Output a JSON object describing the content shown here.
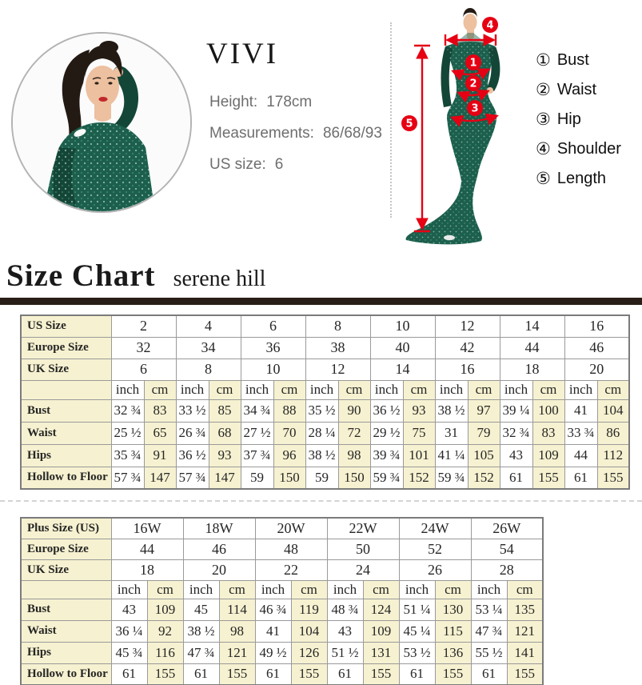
{
  "colors": {
    "accent-red": "#e60013",
    "dress-green": "#1b5f4c",
    "dress-green-dark": "#134637",
    "cream": "#f6f1d0",
    "bar-dark": "#2a1e18",
    "text-grey": "#6e6e6e",
    "skin": "#edc0a0",
    "hair": "#241a14"
  },
  "header": {
    "brand": "VIVI",
    "info": [
      {
        "label": "Height:",
        "value": "178cm"
      },
      {
        "label": "Measurements:",
        "value": "86/68/93"
      },
      {
        "label": "US size:",
        "value": "6"
      }
    ]
  },
  "diagram": {
    "badges": [
      "1",
      "2",
      "3",
      "4",
      "5"
    ],
    "legend": [
      {
        "num": "①",
        "label": "Bust"
      },
      {
        "num": "②",
        "label": "Waist"
      },
      {
        "num": "③",
        "label": "Hip"
      },
      {
        "num": "④",
        "label": "Shoulder"
      },
      {
        "num": "⑤",
        "label": "Length"
      }
    ]
  },
  "section": {
    "title": "Size Chart",
    "subtitle": "serene hill"
  },
  "size_table": {
    "units": [
      "inch",
      "cm"
    ],
    "size_rows": [
      {
        "label": "US Size",
        "values": [
          "2",
          "4",
          "6",
          "8",
          "10",
          "12",
          "14",
          "16"
        ]
      },
      {
        "label": "Europe Size",
        "values": [
          "32",
          "34",
          "36",
          "38",
          "40",
          "42",
          "44",
          "46"
        ]
      },
      {
        "label": "UK Size",
        "values": [
          "6",
          "8",
          "10",
          "12",
          "14",
          "16",
          "18",
          "20"
        ]
      }
    ],
    "measure_rows": [
      {
        "label": "Bust",
        "inch": [
          "32 ¾",
          "33 ½",
          "34 ¾",
          "35 ½",
          "36 ½",
          "38 ½",
          "39 ¼",
          "41"
        ],
        "cm": [
          "83",
          "85",
          "88",
          "90",
          "93",
          "97",
          "100",
          "104"
        ]
      },
      {
        "label": "Waist",
        "inch": [
          "25 ½",
          "26 ¾",
          "27 ½",
          "28 ¼",
          "29 ½",
          "31",
          "32 ¾",
          "33 ¾"
        ],
        "cm": [
          "65",
          "68",
          "70",
          "72",
          "75",
          "79",
          "83",
          "86"
        ]
      },
      {
        "label": "Hips",
        "inch": [
          "35 ¾",
          "36 ½",
          "37 ¾",
          "38 ½",
          "39 ¾",
          "41 ¼",
          "43",
          "44"
        ],
        "cm": [
          "91",
          "93",
          "96",
          "98",
          "101",
          "105",
          "109",
          "112"
        ]
      },
      {
        "label": "Hollow to Floor",
        "inch": [
          "57 ¾",
          "57 ¾",
          "59",
          "59",
          "59 ¾",
          "59 ¾",
          "61",
          "61"
        ],
        "cm": [
          "147",
          "147",
          "150",
          "150",
          "152",
          "152",
          "155",
          "155"
        ]
      }
    ]
  },
  "plus_table": {
    "units": [
      "inch",
      "cm"
    ],
    "size_rows": [
      {
        "label": "Plus Size (US)",
        "values": [
          "16W",
          "18W",
          "20W",
          "22W",
          "24W",
          "26W"
        ]
      },
      {
        "label": "Europe Size",
        "values": [
          "44",
          "46",
          "48",
          "50",
          "52",
          "54"
        ]
      },
      {
        "label": "UK Size",
        "values": [
          "18",
          "20",
          "22",
          "24",
          "26",
          "28"
        ]
      }
    ],
    "measure_rows": [
      {
        "label": "Bust",
        "inch": [
          "43",
          "45",
          "46 ¾",
          "48 ¾",
          "51 ¼",
          "53 ¼"
        ],
        "cm": [
          "109",
          "114",
          "119",
          "124",
          "130",
          "135"
        ]
      },
      {
        "label": "Waist",
        "inch": [
          "36 ¼",
          "38 ½",
          "41",
          "43",
          "45 ¼",
          "47 ¾"
        ],
        "cm": [
          "92",
          "98",
          "104",
          "109",
          "115",
          "121"
        ]
      },
      {
        "label": "Hips",
        "inch": [
          "45 ¾",
          "47 ¾",
          "49 ½",
          "51 ½",
          "53 ½",
          "55 ½"
        ],
        "cm": [
          "116",
          "121",
          "126",
          "131",
          "136",
          "141"
        ]
      },
      {
        "label": "Hollow to Floor",
        "inch": [
          "61",
          "61",
          "61",
          "61",
          "61",
          "61"
        ],
        "cm": [
          "155",
          "155",
          "155",
          "155",
          "155",
          "155"
        ]
      }
    ]
  }
}
